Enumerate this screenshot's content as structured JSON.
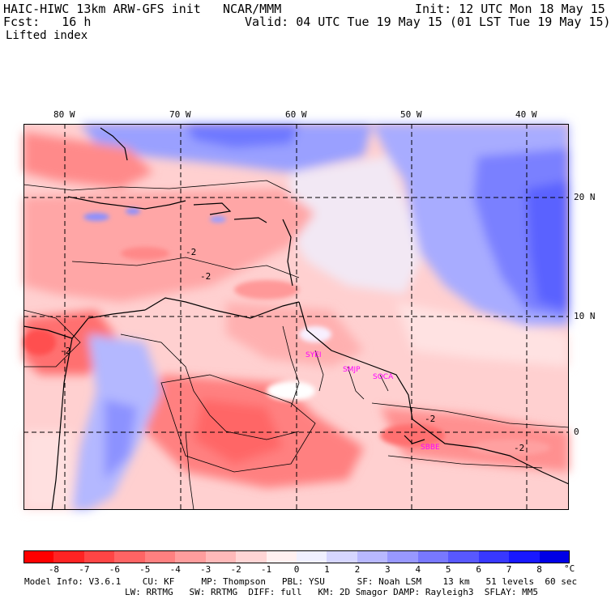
{
  "header": {
    "model_title": "HAIC-HIWC 13km ARW-GFS init",
    "org": "NCAR/MMM",
    "forecast": "Fcst:   16 h",
    "init": "Init: 12 UTC Mon 18 May 15",
    "valid": "Valid: 04 UTC Tue 19 May 15 (01 LST Tue 19 May 15)",
    "field": "Lifted index"
  },
  "axes": {
    "longitudes": [
      "80 W",
      "70 W",
      "60 W",
      "50 W",
      "40 W"
    ],
    "latitudes": [
      "20 N",
      "10 N",
      "0"
    ]
  },
  "contour_labels": [
    "-2",
    "-2",
    "-2",
    "-2",
    "-2"
  ],
  "stations": [
    "SYEI",
    "SMJP",
    "SOCA",
    "SBBE"
  ],
  "colorbar": {
    "labels": [
      "-8",
      "-7",
      "-6",
      "-5",
      "-4",
      "-3",
      "-2",
      "-1",
      "0",
      "1",
      "2",
      "3",
      "4",
      "5",
      "6",
      "7",
      "8"
    ],
    "unit": "°C",
    "colors": [
      "#ff0000",
      "#ff2323",
      "#ff4545",
      "#ff6464",
      "#ff8080",
      "#ff9d9d",
      "#ffb9b9",
      "#ffd5d5",
      "#fff0f0",
      "#f0f0ff",
      "#d6d6ff",
      "#b8b8ff",
      "#9898ff",
      "#7878ff",
      "#5858ff",
      "#3838ff",
      "#1818ff",
      "#0000e6"
    ]
  },
  "footer": {
    "line1": "Model Info: V3.6.1    CU: KF     MP: Thompson   PBL: YSU      SF: Noah LSM    13 km   51 levels  60 sec",
    "line2": "LW: RRTMG   SW: RRTMG  DIFF: full   KM: 2D Smagor DAMP: Rayleigh3  SFLAY: MM5"
  }
}
